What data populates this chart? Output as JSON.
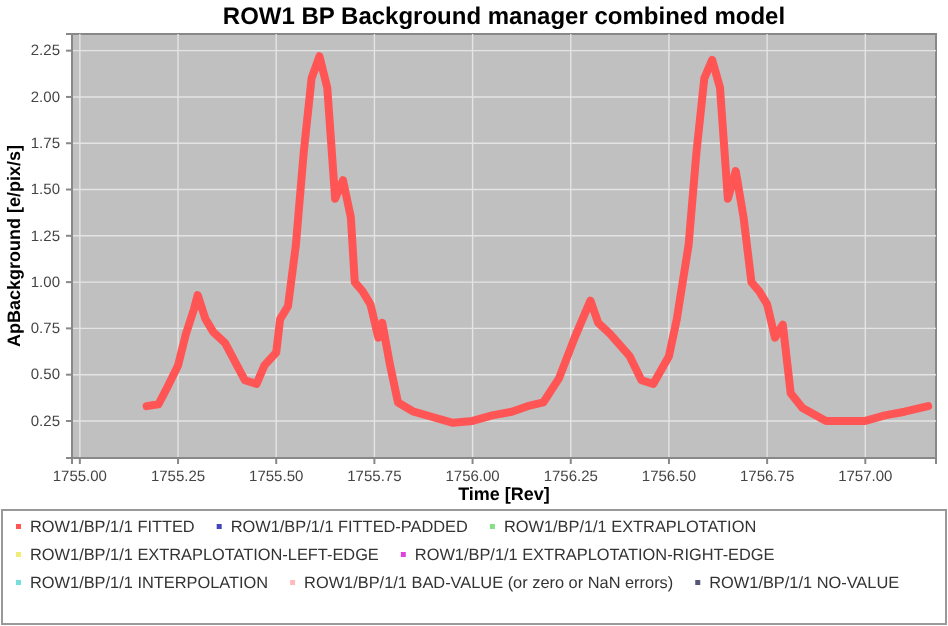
{
  "chart_data": {
    "type": "line",
    "title": "ROW1 BP Background manager combined model",
    "xlabel": "Time [Rev]",
    "ylabel": "ApBackground [e/pix/s]",
    "xlim": [
      1754.98,
      1757.18
    ],
    "ylim": [
      0.05,
      2.34
    ],
    "xticks": [
      {
        "value": 1755,
        "label": "1755.00"
      },
      {
        "value": 1755.25,
        "label": "1755.25"
      },
      {
        "value": 1755.5,
        "label": "1755.50"
      },
      {
        "value": 1755.75,
        "label": "1755.75"
      },
      {
        "value": 1756,
        "label": "1756.00"
      },
      {
        "value": 1756.25,
        "label": "1756.25"
      },
      {
        "value": 1756.5,
        "label": "1756.50"
      },
      {
        "value": 1756.75,
        "label": "1756.75"
      },
      {
        "value": 1757,
        "label": "1757.00"
      }
    ],
    "yticks": [
      {
        "value": 0.25,
        "label": "0.25"
      },
      {
        "value": 0.5,
        "label": "0.50"
      },
      {
        "value": 0.75,
        "label": "0.75"
      },
      {
        "value": 1,
        "label": "1.00"
      },
      {
        "value": 1.25,
        "label": "1.25"
      },
      {
        "value": 1.5,
        "label": "1.50"
      },
      {
        "value": 1.75,
        "label": "1.75"
      },
      {
        "value": 2,
        "label": "2.00"
      },
      {
        "value": 2.25,
        "label": "2.25"
      }
    ],
    "grid": true,
    "legend": "bottom",
    "marker": "none",
    "series": [
      {
        "name": "ROW1/BP/1/1 FITTED",
        "color": "#ff5555",
        "x": [
          1755.17,
          1755.2,
          1755.22,
          1755.25,
          1755.27,
          1755.29,
          1755.3,
          1755.32,
          1755.34,
          1755.37,
          1755.4,
          1755.42,
          1755.45,
          1755.47,
          1755.5,
          1755.51,
          1755.53,
          1755.55,
          1755.57,
          1755.59,
          1755.61,
          1755.63,
          1755.65,
          1755.67,
          1755.69,
          1755.7,
          1755.72,
          1755.74,
          1755.76,
          1755.77,
          1755.79,
          1755.81,
          1755.85,
          1755.9,
          1755.95,
          1756,
          1756.05,
          1756.1,
          1756.14,
          1756.18,
          1756.22,
          1756.26,
          1756.3,
          1756.32,
          1756.35,
          1756.4,
          1756.43,
          1756.46,
          1756.5,
          1756.52,
          1756.55,
          1756.57,
          1756.59,
          1756.61,
          1756.63,
          1756.65,
          1756.67,
          1756.69,
          1756.71,
          1756.73,
          1756.75,
          1756.77,
          1756.79,
          1756.81,
          1756.84,
          1756.9,
          1756.95,
          1757,
          1757.05,
          1757.1,
          1757.16
        ],
        "values": [
          0.33,
          0.34,
          0.42,
          0.55,
          0.72,
          0.85,
          0.93,
          0.8,
          0.73,
          0.67,
          0.55,
          0.47,
          0.45,
          0.55,
          0.62,
          0.8,
          0.87,
          1.2,
          1.7,
          2.1,
          2.22,
          2.05,
          1.45,
          1.55,
          1.35,
          1.0,
          0.95,
          0.88,
          0.7,
          0.78,
          0.55,
          0.35,
          0.3,
          0.27,
          0.24,
          0.25,
          0.28,
          0.3,
          0.33,
          0.35,
          0.48,
          0.7,
          0.9,
          0.78,
          0.72,
          0.6,
          0.47,
          0.45,
          0.6,
          0.8,
          1.2,
          1.7,
          2.1,
          2.2,
          2.05,
          1.45,
          1.6,
          1.35,
          1.0,
          0.95,
          0.88,
          0.7,
          0.77,
          0.4,
          0.32,
          0.25,
          0.25,
          0.25,
          0.28,
          0.3,
          0.33
        ]
      },
      {
        "name": "ROW1/BP/1/1 FITTED-PADDED",
        "color": "#4444bb"
      },
      {
        "name": "ROW1/BP/1/1 EXTRAPLOTATION",
        "color": "#88dd88"
      },
      {
        "name": "ROW1/BP/1/1 EXTRAPLOTATION-LEFT-EDGE",
        "color": "#eeee77"
      },
      {
        "name": "ROW1/BP/1/1 EXTRAPLOTATION-RIGHT-EDGE",
        "color": "#dd44dd"
      },
      {
        "name": "ROW1/BP/1/1 INTERPOLATION",
        "color": "#77dddd"
      },
      {
        "name": "ROW1/BP/1/1 BAD-VALUE (or zero or NaN errors)",
        "color": "#ffbbbb"
      },
      {
        "name": "ROW1/BP/1/1 NO-VALUE",
        "color": "#555577"
      }
    ]
  }
}
